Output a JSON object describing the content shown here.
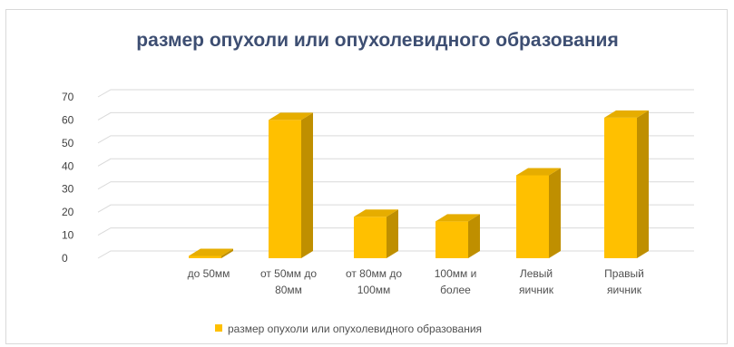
{
  "chart_data": {
    "type": "bar",
    "title": "размер опухоли или опухолевидного образования",
    "categories": [
      [
        "до 50мм"
      ],
      [
        "от 50мм до",
        "80мм"
      ],
      [
        "от 80мм  до",
        "100мм"
      ],
      [
        "100мм и",
        "более"
      ],
      [
        "Левый",
        "яичник"
      ],
      [
        "Правый",
        "яичник"
      ]
    ],
    "series": [
      {
        "name": "размер опухоли или опухолевидного образования",
        "values": [
          1,
          60,
          18,
          16,
          36,
          61
        ]
      }
    ],
    "ylim": [
      0,
      70
    ],
    "yticks": [
      0,
      10,
      20,
      30,
      40,
      50,
      60,
      70
    ],
    "grid": true,
    "legend_position": "bottom",
    "colors": {
      "bar_front": "#ffc000",
      "bar_side": "#bf8f00",
      "bar_top": "#e6ad00",
      "grid": "#d9d9d9",
      "title": "#3d4e72"
    }
  }
}
